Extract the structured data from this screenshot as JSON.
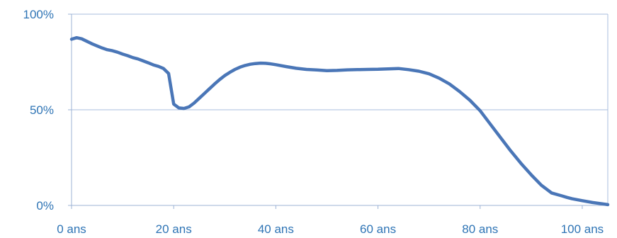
{
  "chart_data": {
    "type": "line",
    "title": "",
    "xlabel": "",
    "ylabel": "",
    "xlim": [
      0,
      105
    ],
    "ylim": [
      0,
      100
    ],
    "grid": true,
    "x_ticks": [
      {
        "value": 0,
        "label": "0 ans"
      },
      {
        "value": 20,
        "label": "20 ans"
      },
      {
        "value": 40,
        "label": "40 ans"
      },
      {
        "value": 60,
        "label": "60 ans"
      },
      {
        "value": 80,
        "label": "80 ans"
      },
      {
        "value": 100,
        "label": "100 ans"
      }
    ],
    "y_ticks": [
      {
        "value": 0,
        "label": "0%"
      },
      {
        "value": 50,
        "label": "50%"
      },
      {
        "value": 100,
        "label": "100%"
      }
    ],
    "series": [
      {
        "color": "#4a76b7",
        "x": [
          0,
          1,
          2,
          3,
          4,
          5,
          6,
          7,
          8,
          9,
          10,
          11,
          12,
          13,
          14,
          15,
          16,
          17,
          18,
          19,
          20,
          21,
          22,
          23,
          24,
          25,
          26,
          27,
          28,
          29,
          30,
          31,
          32,
          33,
          34,
          35,
          36,
          37,
          38,
          39,
          40,
          42,
          44,
          46,
          48,
          50,
          52,
          54,
          56,
          58,
          60,
          62,
          64,
          66,
          68,
          70,
          72,
          74,
          76,
          78,
          80,
          82,
          84,
          86,
          88,
          90,
          92,
          94,
          96,
          97,
          98,
          100,
          102,
          104,
          105
        ],
        "y": [
          86.9,
          87.7,
          87.1,
          85.8,
          84.5,
          83.4,
          82.3,
          81.4,
          80.9,
          80.1,
          79.1,
          78.3,
          77.3,
          76.6,
          75.6,
          74.6,
          73.5,
          72.7,
          71.6,
          69.0,
          53.0,
          51.0,
          50.7,
          51.5,
          53.5,
          56.0,
          58.5,
          61.0,
          63.5,
          65.8,
          67.9,
          69.6,
          71.1,
          72.3,
          73.2,
          73.8,
          74.2,
          74.4,
          74.3,
          74.0,
          73.6,
          72.6,
          71.7,
          71.1,
          70.8,
          70.5,
          70.6,
          70.9,
          71.0,
          71.1,
          71.2,
          71.4,
          71.6,
          71.0,
          70.2,
          68.8,
          66.5,
          63.5,
          59.5,
          55.0,
          49.5,
          42.5,
          35.5,
          28.5,
          22.0,
          16.0,
          10.5,
          6.5,
          5.0,
          4.2,
          3.5,
          2.5,
          1.5,
          0.8,
          0.4
        ]
      }
    ]
  }
}
